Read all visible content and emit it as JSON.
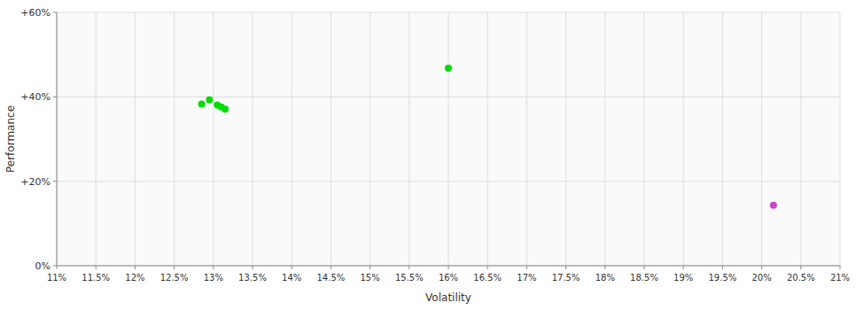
{
  "chart_data": {
    "type": "scatter",
    "xlabel": "Volatility",
    "ylabel": "Performance",
    "xlim": [
      0.11,
      0.21
    ],
    "ylim": [
      0.0,
      0.6
    ],
    "xticks": [
      {
        "value": 0.11,
        "label": "11%"
      },
      {
        "value": 0.115,
        "label": "11.5%"
      },
      {
        "value": 0.12,
        "label": "12%"
      },
      {
        "value": 0.125,
        "label": "12.5%"
      },
      {
        "value": 0.13,
        "label": "13%"
      },
      {
        "value": 0.135,
        "label": "13.5%"
      },
      {
        "value": 0.14,
        "label": "14%"
      },
      {
        "value": 0.145,
        "label": "14.5%"
      },
      {
        "value": 0.15,
        "label": "15%"
      },
      {
        "value": 0.155,
        "label": "15.5%"
      },
      {
        "value": 0.16,
        "label": "16%"
      },
      {
        "value": 0.165,
        "label": "16.5%"
      },
      {
        "value": 0.17,
        "label": "17%"
      },
      {
        "value": 0.175,
        "label": "17.5%"
      },
      {
        "value": 0.18,
        "label": "18%"
      },
      {
        "value": 0.185,
        "label": "18.5%"
      },
      {
        "value": 0.19,
        "label": "19%"
      },
      {
        "value": 0.195,
        "label": "19.5%"
      },
      {
        "value": 0.2,
        "label": "20%"
      },
      {
        "value": 0.205,
        "label": "20.5%"
      },
      {
        "value": 0.21,
        "label": "21%"
      }
    ],
    "yticks": [
      {
        "value": 0.0,
        "label": "0%"
      },
      {
        "value": 0.2,
        "label": "+20%"
      },
      {
        "value": 0.4,
        "label": "+40%"
      },
      {
        "value": 0.6,
        "label": "+60%"
      }
    ],
    "grid": true,
    "series": [
      {
        "color": "#00dd00",
        "x": [
          0.1285,
          0.1295,
          0.1305,
          0.131,
          0.1315,
          0.16
        ],
        "values": [
          0.383,
          0.393,
          0.381,
          0.376,
          0.371,
          0.468
        ]
      },
      {
        "color": "#cc44cc",
        "x": [
          0.2015
        ],
        "values": [
          0.143
        ]
      }
    ]
  }
}
